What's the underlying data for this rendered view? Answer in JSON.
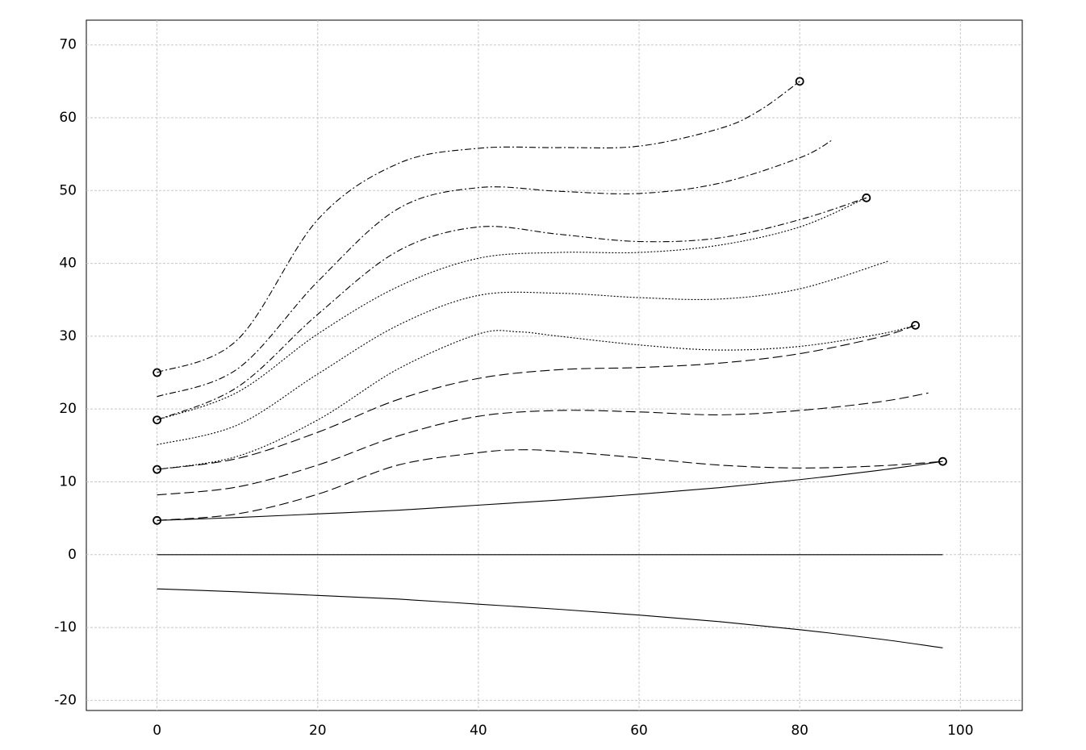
{
  "chart_data": {
    "type": "line",
    "grid": true,
    "xlim": [
      -8.8,
      107.7
    ],
    "ylim": [
      -21.4,
      73.4
    ],
    "xticks": [
      0,
      20,
      40,
      60,
      80,
      100
    ],
    "yticks": [
      -20,
      -10,
      0,
      10,
      20,
      30,
      40,
      50,
      60,
      70
    ],
    "series": [
      {
        "color": "#000000",
        "dash": "solid",
        "x": [
          0,
          10,
          20,
          30,
          40,
          50,
          60,
          70,
          80,
          90,
          97.8
        ],
        "values": [
          -4.7,
          -5.1,
          -5.6,
          -6.1,
          -6.8,
          -7.5,
          -8.3,
          -9.2,
          -10.3,
          -11.6,
          -12.8
        ]
      },
      {
        "color": "#000000",
        "dash": "solid",
        "x": [
          0,
          97.8
        ],
        "values": [
          0,
          0
        ]
      },
      {
        "color": "#000000",
        "dash": "solid",
        "x": [
          0,
          10,
          20,
          30,
          40,
          50,
          60,
          70,
          80,
          90,
          97.8
        ],
        "values": [
          4.7,
          5.1,
          5.6,
          6.1,
          6.8,
          7.5,
          8.3,
          9.2,
          10.3,
          11.6,
          12.8
        ]
      },
      {
        "color": "#000000",
        "dash": "dashed",
        "x": [
          0,
          10,
          20,
          30,
          40,
          45,
          50,
          60,
          70,
          80,
          90,
          97.8
        ],
        "values": [
          4.7,
          5.6,
          8.3,
          12.3,
          14.0,
          14.4,
          14.2,
          13.3,
          12.3,
          11.9,
          12.2,
          12.8
        ]
      },
      {
        "color": "#000000",
        "dash": "dashed",
        "x": [
          0,
          10,
          20,
          30,
          40,
          50,
          60,
          70,
          80,
          90,
          96
        ],
        "values": [
          8.2,
          9.3,
          12.3,
          16.3,
          19.0,
          19.8,
          19.6,
          19.2,
          19.8,
          21.0,
          22.2
        ]
      },
      {
        "color": "#000000",
        "dash": "dashed",
        "x": [
          0,
          10,
          20,
          30,
          40,
          50,
          60,
          70,
          80,
          90,
          94.4
        ],
        "values": [
          11.7,
          13.2,
          16.8,
          21.3,
          24.2,
          25.4,
          25.7,
          26.3,
          27.6,
          29.9,
          31.5
        ]
      },
      {
        "color": "#000000",
        "dash": "dotted",
        "x": [
          0,
          10,
          20,
          30,
          40,
          45,
          50,
          60,
          70,
          80,
          90,
          94.4
        ],
        "values": [
          11.7,
          13.5,
          18.5,
          25.5,
          30.3,
          30.6,
          30.0,
          28.8,
          28.1,
          28.6,
          30.3,
          31.5
        ]
      },
      {
        "color": "#000000",
        "dash": "dotted",
        "x": [
          0,
          10,
          20,
          30,
          40,
          50,
          60,
          70,
          80,
          91
        ],
        "values": [
          15.1,
          17.8,
          24.8,
          31.5,
          35.6,
          35.9,
          35.3,
          35.1,
          36.5,
          40.3
        ]
      },
      {
        "color": "#000000",
        "dash": "dotted",
        "x": [
          0,
          10,
          20,
          30,
          40,
          50,
          60,
          70,
          80,
          88.3
        ],
        "values": [
          18.5,
          22.3,
          30.3,
          36.8,
          40.7,
          41.5,
          41.5,
          42.5,
          45.0,
          49
        ]
      },
      {
        "color": "#000000",
        "dash": "dashdot",
        "x": [
          0,
          10,
          20,
          30,
          40,
          50,
          60,
          70,
          80,
          88.3
        ],
        "values": [
          18.5,
          23,
          33,
          41.7,
          45.0,
          44.0,
          43.0,
          43.5,
          46.0,
          49
        ]
      },
      {
        "color": "#000000",
        "dash": "dashdot",
        "x": [
          0,
          10,
          20,
          30,
          40,
          50,
          60,
          70,
          80,
          84
        ],
        "values": [
          21.7,
          25.5,
          37.5,
          47.5,
          50.4,
          49.9,
          49.6,
          51.0,
          54.5,
          56.9
        ]
      },
      {
        "color": "#000000",
        "dash": "dashdot",
        "x": [
          0,
          10,
          20,
          30,
          40,
          50,
          60,
          70,
          75,
          80
        ],
        "values": [
          25,
          29.5,
          46,
          53.7,
          55.8,
          55.9,
          56.1,
          58.5,
          61,
          65
        ]
      }
    ],
    "markers": {
      "x": [
        0,
        0,
        0,
        0,
        80,
        88.3,
        94.4,
        97.8
      ],
      "values": [
        25,
        18.5,
        11.7,
        4.7,
        65,
        49,
        31.5,
        12.8
      ]
    }
  }
}
